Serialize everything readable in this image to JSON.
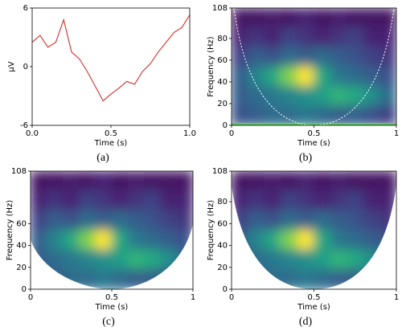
{
  "chart_data": [
    {
      "type": "line",
      "caption": "(a)",
      "x_label": "Time (s)",
      "y_label": "μV",
      "x": [
        0,
        0.05,
        0.1,
        0.15,
        0.2,
        0.25,
        0.3,
        0.35,
        0.4,
        0.45,
        0.5,
        0.55,
        0.6,
        0.65,
        0.7,
        0.75,
        0.8,
        0.85,
        0.9,
        0.95,
        1.0
      ],
      "values": [
        2.5,
        3.2,
        2,
        2.5,
        4.8,
        1.5,
        0.8,
        -0.5,
        -2,
        -3.5,
        -2.8,
        -2.2,
        -1.5,
        -1.8,
        -0.5,
        0.3,
        1.5,
        2.5,
        3.5,
        4,
        5.3
      ],
      "color": "#d0312d",
      "xlim": [
        0,
        1
      ],
      "ylim": [
        -6,
        6
      ],
      "xticks": [
        {
          "value": 0,
          "label": "0.0"
        },
        {
          "value": 0.5,
          "label": "0.5"
        },
        {
          "value": 1,
          "label": "1.0"
        }
      ],
      "yticks": [
        -6,
        0,
        6
      ]
    },
    {
      "type": "heatmap",
      "caption": "(b)",
      "x_label": "Time (s)",
      "y_label": "Frequency (Hz)",
      "colormap": "viridis",
      "cone": "dashed",
      "xlim": [
        0,
        1
      ],
      "ylim": [
        0,
        108
      ],
      "xticks": [
        0,
        0.5,
        1
      ],
      "yticks": [
        0,
        20,
        40,
        60,
        80,
        108
      ],
      "z": [
        [
          0.05,
          0.05,
          0.08,
          0.05,
          0.1,
          0.05,
          0.08,
          0.05,
          0.05,
          0.05
        ],
        [
          0.1,
          0.15,
          0.1,
          0.2,
          0.15,
          0.1,
          0.15,
          0.2,
          0.1,
          0.1
        ],
        [
          0.2,
          0.3,
          0.25,
          0.35,
          0.3,
          0.35,
          0.3,
          0.25,
          0.2,
          0.15
        ],
        [
          0.3,
          0.45,
          0.6,
          0.8,
          1.0,
          0.6,
          0.4,
          0.35,
          0.3,
          0.25
        ],
        [
          0.3,
          0.35,
          0.4,
          0.45,
          0.5,
          0.55,
          0.65,
          0.6,
          0.5,
          0.35
        ],
        [
          0.25,
          0.3,
          0.35,
          0.35,
          0.4,
          0.35,
          0.3,
          0.3,
          0.25,
          0.2
        ]
      ]
    },
    {
      "type": "heatmap",
      "caption": "(c)",
      "x_label": "Time (s)",
      "y_label": "Frequency (Hz)",
      "colormap": "viridis",
      "cone": "narrow",
      "xlim": [
        0,
        1
      ],
      "ylim": [
        0,
        108
      ],
      "xticks": [
        0,
        0.5,
        1
      ],
      "yticks": [
        0,
        20,
        40,
        60,
        108
      ],
      "z": [
        [
          0.05,
          0.05,
          0.08,
          0.05,
          0.1,
          0.05,
          0.08,
          0.05,
          0.05,
          0.05
        ],
        [
          0.1,
          0.15,
          0.1,
          0.2,
          0.15,
          0.1,
          0.15,
          0.2,
          0.1,
          0.1
        ],
        [
          0.2,
          0.3,
          0.25,
          0.35,
          0.3,
          0.35,
          0.3,
          0.25,
          0.2,
          0.15
        ],
        [
          0.3,
          0.45,
          0.6,
          0.8,
          1.0,
          0.6,
          0.4,
          0.35,
          0.3,
          0.25
        ],
        [
          0.3,
          0.35,
          0.4,
          0.45,
          0.5,
          0.55,
          0.65,
          0.6,
          0.5,
          0.35
        ],
        [
          0.25,
          0.3,
          0.35,
          0.35,
          0.4,
          0.35,
          0.3,
          0.3,
          0.25,
          0.2
        ]
      ]
    },
    {
      "type": "heatmap",
      "caption": "(d)",
      "x_label": "Time (s)",
      "y_label": "Frequency (Hz)",
      "colormap": "viridis",
      "cone": "wide",
      "xlim": [
        0,
        1
      ],
      "ylim": [
        0,
        108
      ],
      "xticks": [
        0,
        0.5,
        1
      ],
      "yticks": [
        0,
        20,
        40,
        60,
        80,
        108
      ],
      "z": [
        [
          0.05,
          0.05,
          0.08,
          0.05,
          0.1,
          0.05,
          0.08,
          0.05,
          0.05,
          0.05
        ],
        [
          0.1,
          0.15,
          0.1,
          0.2,
          0.15,
          0.1,
          0.15,
          0.2,
          0.1,
          0.1
        ],
        [
          0.2,
          0.3,
          0.25,
          0.35,
          0.3,
          0.35,
          0.3,
          0.25,
          0.2,
          0.15
        ],
        [
          0.3,
          0.45,
          0.6,
          0.8,
          1.0,
          0.6,
          0.4,
          0.35,
          0.3,
          0.25
        ],
        [
          0.3,
          0.35,
          0.4,
          0.45,
          0.5,
          0.55,
          0.65,
          0.6,
          0.5,
          0.35
        ],
        [
          0.25,
          0.3,
          0.35,
          0.35,
          0.4,
          0.35,
          0.3,
          0.3,
          0.25,
          0.2
        ]
      ]
    }
  ]
}
